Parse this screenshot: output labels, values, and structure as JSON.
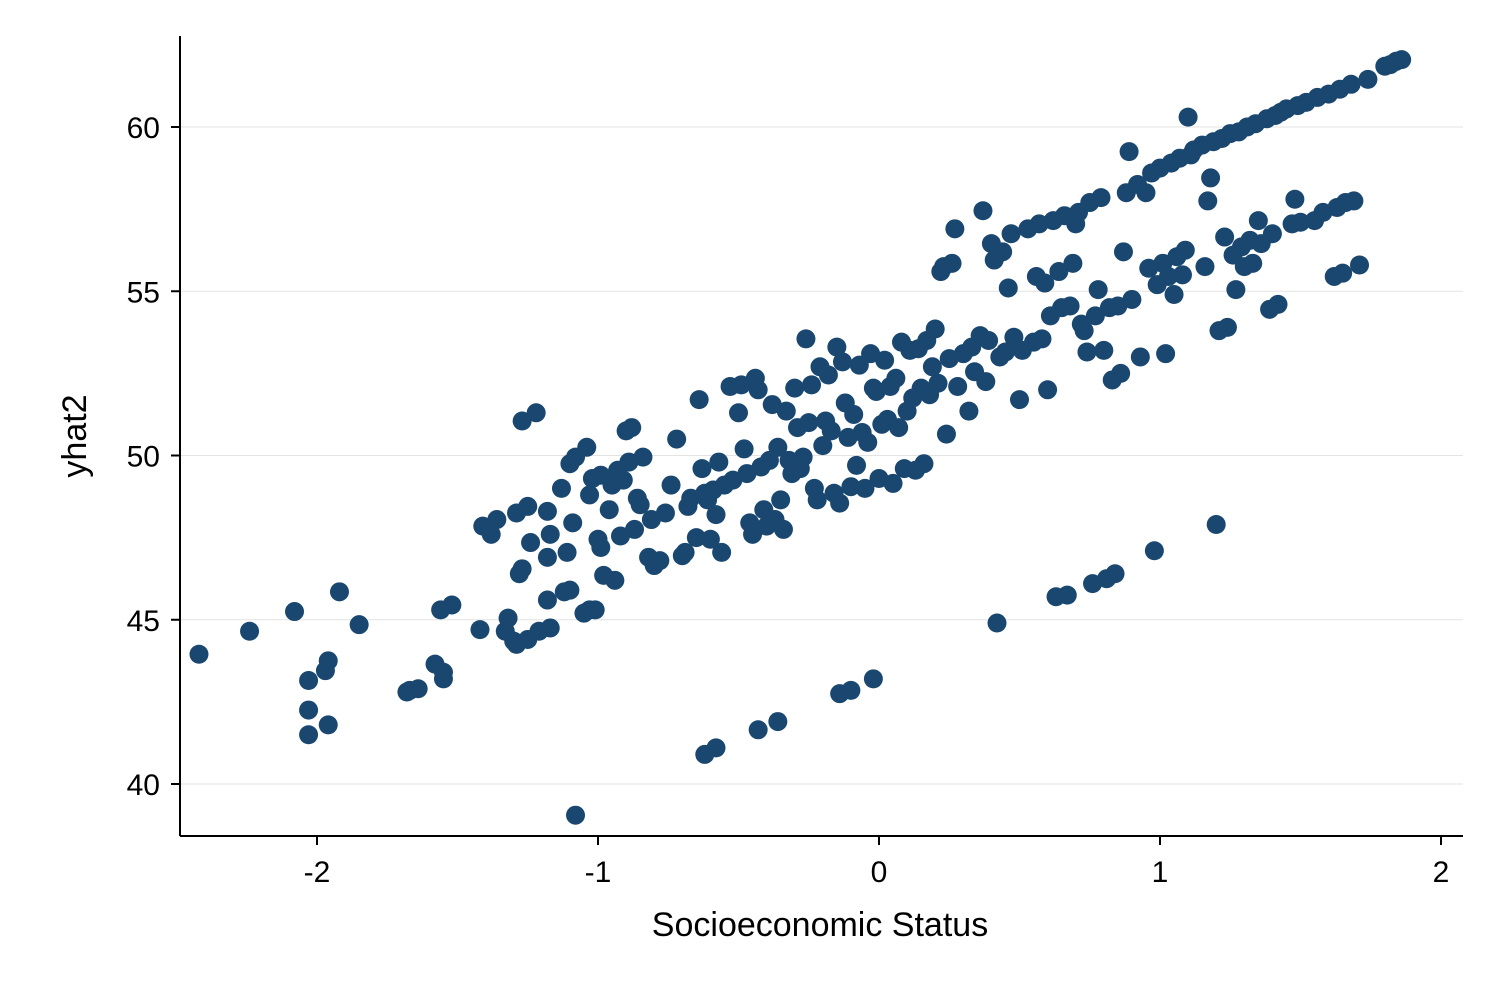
{
  "chart_data": {
    "type": "scatter",
    "title": "",
    "xlabel": "Socioeconomic Status",
    "ylabel": "yhat2",
    "xlim": [
      -2.5,
      2.08
    ],
    "ylim": [
      38.4,
      62.8
    ],
    "xticks": [
      -2,
      -1,
      0,
      1,
      2
    ],
    "xtick_labels": [
      "-2",
      "-1",
      "0",
      "1",
      "2"
    ],
    "yticks": [
      40,
      45,
      50,
      55,
      60
    ],
    "ytick_labels": [
      "40",
      "45",
      "50",
      "55",
      "60"
    ],
    "grid": "horizontal",
    "marker_color": "#1a476f",
    "series": [
      {
        "name": "yhat2",
        "points": [
          [
            -2.42,
            43.95
          ],
          [
            -2.24,
            44.65
          ],
          [
            -2.08,
            45.25
          ],
          [
            -2.03,
            43.15
          ],
          [
            -2.03,
            42.25
          ],
          [
            -2.03,
            41.5
          ],
          [
            -1.97,
            43.45
          ],
          [
            -1.96,
            43.75
          ],
          [
            -1.96,
            41.8
          ],
          [
            -1.92,
            45.85
          ],
          [
            -1.85,
            44.85
          ],
          [
            -1.68,
            42.8
          ],
          [
            -1.67,
            42.85
          ],
          [
            -1.64,
            42.9
          ],
          [
            -1.58,
            43.65
          ],
          [
            -1.55,
            43.4
          ],
          [
            -1.55,
            43.2
          ],
          [
            -1.56,
            45.3
          ],
          [
            -1.52,
            45.45
          ],
          [
            -1.42,
            44.7
          ],
          [
            -1.41,
            47.85
          ],
          [
            -1.38,
            47.6
          ],
          [
            -1.36,
            48.05
          ],
          [
            -1.33,
            44.65
          ],
          [
            -1.32,
            45.05
          ],
          [
            -1.3,
            44.35
          ],
          [
            -1.29,
            44.25
          ],
          [
            -1.28,
            46.4
          ],
          [
            -1.27,
            46.55
          ],
          [
            -1.29,
            48.25
          ],
          [
            -1.25,
            48.45
          ],
          [
            -1.24,
            47.35
          ],
          [
            -1.27,
            51.05
          ],
          [
            -1.22,
            51.3
          ],
          [
            -1.25,
            44.4
          ],
          [
            -1.21,
            44.65
          ],
          [
            -1.17,
            44.75
          ],
          [
            -1.18,
            46.9
          ],
          [
            -1.17,
            47.6
          ],
          [
            -1.18,
            48.3
          ],
          [
            -1.18,
            45.6
          ],
          [
            -1.12,
            45.85
          ],
          [
            -1.1,
            45.9
          ],
          [
            -1.11,
            47.05
          ],
          [
            -1.13,
            49.0
          ],
          [
            -1.1,
            49.75
          ],
          [
            -1.08,
            49.95
          ],
          [
            -1.09,
            47.95
          ],
          [
            -1.05,
            45.2
          ],
          [
            -1.03,
            45.3
          ],
          [
            -1.01,
            45.3
          ],
          [
            -1.03,
            48.8
          ],
          [
            -1.02,
            49.3
          ],
          [
            -1.04,
            50.25
          ],
          [
            -1.0,
            47.45
          ],
          [
            -0.99,
            47.2
          ],
          [
            -0.99,
            49.4
          ],
          [
            -0.98,
            46.35
          ],
          [
            -0.94,
            46.2
          ],
          [
            -0.96,
            48.35
          ],
          [
            -0.95,
            49.1
          ],
          [
            -0.93,
            49.55
          ],
          [
            -0.92,
            47.55
          ],
          [
            -0.91,
            49.25
          ],
          [
            -0.89,
            49.8
          ],
          [
            -0.88,
            50.85
          ],
          [
            -0.9,
            50.75
          ],
          [
            -0.87,
            47.75
          ],
          [
            -0.86,
            48.7
          ],
          [
            -0.85,
            48.5
          ],
          [
            -0.84,
            49.95
          ],
          [
            -0.81,
            48.05
          ],
          [
            -0.82,
            46.9
          ],
          [
            -0.8,
            46.65
          ],
          [
            -0.78,
            46.8
          ],
          [
            -0.76,
            48.25
          ],
          [
            -0.74,
            49.1
          ],
          [
            -0.72,
            50.5
          ],
          [
            -0.7,
            46.95
          ],
          [
            -0.69,
            47.05
          ],
          [
            -0.68,
            48.45
          ],
          [
            -0.67,
            48.7
          ],
          [
            -0.65,
            47.5
          ],
          [
            -0.64,
            51.7
          ],
          [
            -0.63,
            49.6
          ],
          [
            -0.62,
            48.85
          ],
          [
            -0.61,
            48.65
          ],
          [
            -0.6,
            47.45
          ],
          [
            -0.59,
            48.95
          ],
          [
            -0.58,
            48.2
          ],
          [
            -0.57,
            49.8
          ],
          [
            -0.56,
            47.05
          ],
          [
            -0.55,
            49.1
          ],
          [
            -0.53,
            52.1
          ],
          [
            -0.52,
            49.25
          ],
          [
            -0.5,
            51.3
          ],
          [
            -0.49,
            52.15
          ],
          [
            -0.48,
            50.2
          ],
          [
            -0.47,
            49.45
          ],
          [
            -0.46,
            47.95
          ],
          [
            -0.45,
            47.6
          ],
          [
            -0.44,
            52.35
          ],
          [
            -0.43,
            52.0
          ],
          [
            -0.42,
            49.65
          ],
          [
            -0.41,
            48.35
          ],
          [
            -0.4,
            47.85
          ],
          [
            -0.39,
            49.85
          ],
          [
            -0.38,
            51.55
          ],
          [
            -0.37,
            48.05
          ],
          [
            -0.36,
            50.25
          ],
          [
            -0.35,
            48.65
          ],
          [
            -0.34,
            47.75
          ],
          [
            -0.33,
            51.35
          ],
          [
            -0.32,
            49.85
          ],
          [
            -0.31,
            49.45
          ],
          [
            -0.3,
            52.05
          ],
          [
            -0.29,
            50.85
          ],
          [
            -0.28,
            49.6
          ],
          [
            -0.27,
            49.95
          ],
          [
            -0.26,
            53.55
          ],
          [
            -0.25,
            51.0
          ],
          [
            -0.24,
            52.15
          ],
          [
            -0.23,
            49.0
          ],
          [
            -0.22,
            48.65
          ],
          [
            -0.21,
            52.7
          ],
          [
            -0.2,
            50.3
          ],
          [
            -0.19,
            51.05
          ],
          [
            -0.18,
            52.45
          ],
          [
            -0.17,
            50.75
          ],
          [
            -0.16,
            48.85
          ],
          [
            -0.15,
            53.3
          ],
          [
            -0.14,
            48.55
          ],
          [
            -0.13,
            52.85
          ],
          [
            -0.12,
            51.6
          ],
          [
            -0.11,
            50.55
          ],
          [
            -0.1,
            49.05
          ],
          [
            -0.09,
            51.25
          ],
          [
            -0.08,
            49.7
          ],
          [
            -0.07,
            52.75
          ],
          [
            -0.06,
            50.7
          ],
          [
            -0.05,
            49.0
          ],
          [
            -0.04,
            50.4
          ],
          [
            -0.03,
            53.1
          ],
          [
            -0.02,
            52.05
          ],
          [
            -0.01,
            51.95
          ],
          [
            0.0,
            49.3
          ],
          [
            0.01,
            50.95
          ],
          [
            0.02,
            52.9
          ],
          [
            0.03,
            51.1
          ],
          [
            0.04,
            52.1
          ],
          [
            0.05,
            49.15
          ],
          [
            0.06,
            52.35
          ],
          [
            0.07,
            50.85
          ],
          [
            0.08,
            53.45
          ],
          [
            0.09,
            49.6
          ],
          [
            0.1,
            51.35
          ],
          [
            0.11,
            53.2
          ],
          [
            0.12,
            51.75
          ],
          [
            0.13,
            49.55
          ],
          [
            0.14,
            53.25
          ],
          [
            0.15,
            52.05
          ],
          [
            0.16,
            49.75
          ],
          [
            0.17,
            53.5
          ],
          [
            0.18,
            51.85
          ],
          [
            0.19,
            52.7
          ],
          [
            0.2,
            53.85
          ],
          [
            0.21,
            52.2
          ],
          [
            0.22,
            55.6
          ],
          [
            0.23,
            55.75
          ],
          [
            0.24,
            50.65
          ],
          [
            0.25,
            52.95
          ],
          [
            0.26,
            55.85
          ],
          [
            0.27,
            56.9
          ],
          [
            0.28,
            52.1
          ],
          [
            0.3,
            53.1
          ],
          [
            0.32,
            51.35
          ],
          [
            0.33,
            53.3
          ],
          [
            0.34,
            52.55
          ],
          [
            0.36,
            53.65
          ],
          [
            0.37,
            57.45
          ],
          [
            0.38,
            52.25
          ],
          [
            0.39,
            53.5
          ],
          [
            0.4,
            56.45
          ],
          [
            0.41,
            55.95
          ],
          [
            0.42,
            44.9
          ],
          [
            0.43,
            53.0
          ],
          [
            0.44,
            56.2
          ],
          [
            0.45,
            53.15
          ],
          [
            0.46,
            55.1
          ],
          [
            0.47,
            56.75
          ],
          [
            0.48,
            53.6
          ],
          [
            0.5,
            51.7
          ],
          [
            0.51,
            53.2
          ],
          [
            0.53,
            56.9
          ],
          [
            0.55,
            53.45
          ],
          [
            0.56,
            55.45
          ],
          [
            0.57,
            57.05
          ],
          [
            0.58,
            53.55
          ],
          [
            0.59,
            55.25
          ],
          [
            0.6,
            52.0
          ],
          [
            0.61,
            54.25
          ],
          [
            0.62,
            57.15
          ],
          [
            0.63,
            45.7
          ],
          [
            0.64,
            55.6
          ],
          [
            0.65,
            54.5
          ],
          [
            0.66,
            57.3
          ],
          [
            0.67,
            45.75
          ],
          [
            0.68,
            54.55
          ],
          [
            0.69,
            55.85
          ],
          [
            0.7,
            57.05
          ],
          [
            0.71,
            57.4
          ],
          [
            0.72,
            54.0
          ],
          [
            0.73,
            53.8
          ],
          [
            0.74,
            53.15
          ],
          [
            0.75,
            57.7
          ],
          [
            0.76,
            46.1
          ],
          [
            0.77,
            54.25
          ],
          [
            0.78,
            55.05
          ],
          [
            0.79,
            57.85
          ],
          [
            0.8,
            53.2
          ],
          [
            0.81,
            46.25
          ],
          [
            0.82,
            54.5
          ],
          [
            0.83,
            52.3
          ],
          [
            0.84,
            46.4
          ],
          [
            0.85,
            54.55
          ],
          [
            0.86,
            52.5
          ],
          [
            0.87,
            56.2
          ],
          [
            0.88,
            58.0
          ],
          [
            0.89,
            59.25
          ],
          [
            0.9,
            54.75
          ],
          [
            0.92,
            58.25
          ],
          [
            0.93,
            53.0
          ],
          [
            0.95,
            58.0
          ],
          [
            0.96,
            55.7
          ],
          [
            0.97,
            58.6
          ],
          [
            0.98,
            47.1
          ],
          [
            0.99,
            55.2
          ],
          [
            1.0,
            58.75
          ],
          [
            1.01,
            55.85
          ],
          [
            1.02,
            53.1
          ],
          [
            1.03,
            55.45
          ],
          [
            1.04,
            58.9
          ],
          [
            1.05,
            54.9
          ],
          [
            1.06,
            56.05
          ],
          [
            1.07,
            59.05
          ],
          [
            1.08,
            55.5
          ],
          [
            1.09,
            56.25
          ],
          [
            1.1,
            60.3
          ],
          [
            1.11,
            59.15
          ],
          [
            1.12,
            59.3
          ],
          [
            1.15,
            59.45
          ],
          [
            1.16,
            55.75
          ],
          [
            1.17,
            57.75
          ],
          [
            1.18,
            58.45
          ],
          [
            1.19,
            59.55
          ],
          [
            1.2,
            47.9
          ],
          [
            1.21,
            53.8
          ],
          [
            1.22,
            59.65
          ],
          [
            1.23,
            56.65
          ],
          [
            1.24,
            53.9
          ],
          [
            1.25,
            59.8
          ],
          [
            1.26,
            56.1
          ],
          [
            1.27,
            55.05
          ],
          [
            1.28,
            59.85
          ],
          [
            1.29,
            56.35
          ],
          [
            1.3,
            55.75
          ],
          [
            1.31,
            60.0
          ],
          [
            1.32,
            56.55
          ],
          [
            1.33,
            55.85
          ],
          [
            1.34,
            60.1
          ],
          [
            1.35,
            57.15
          ],
          [
            1.36,
            56.45
          ],
          [
            1.38,
            60.25
          ],
          [
            1.39,
            54.45
          ],
          [
            1.4,
            56.75
          ],
          [
            1.41,
            60.35
          ],
          [
            1.42,
            54.6
          ],
          [
            1.43,
            60.45
          ],
          [
            1.45,
            60.55
          ],
          [
            1.47,
            57.05
          ],
          [
            1.48,
            57.8
          ],
          [
            1.49,
            60.65
          ],
          [
            1.5,
            57.1
          ],
          [
            1.52,
            60.75
          ],
          [
            1.55,
            57.15
          ],
          [
            1.56,
            60.9
          ],
          [
            1.58,
            57.4
          ],
          [
            1.6,
            61.0
          ],
          [
            1.62,
            55.45
          ],
          [
            1.63,
            57.55
          ],
          [
            1.64,
            61.15
          ],
          [
            1.65,
            55.55
          ],
          [
            1.66,
            57.7
          ],
          [
            1.68,
            61.3
          ],
          [
            1.69,
            57.75
          ],
          [
            1.71,
            55.8
          ],
          [
            1.74,
            61.45
          ],
          [
            1.8,
            61.85
          ],
          [
            1.82,
            61.9
          ],
          [
            1.84,
            62.0
          ],
          [
            1.86,
            62.05
          ],
          [
            -1.08,
            39.05
          ],
          [
            -0.62,
            40.9
          ],
          [
            -0.58,
            41.1
          ],
          [
            -0.43,
            41.65
          ],
          [
            -0.36,
            41.9
          ],
          [
            -0.14,
            42.75
          ],
          [
            -0.1,
            42.85
          ],
          [
            -0.02,
            43.2
          ]
        ]
      }
    ]
  }
}
